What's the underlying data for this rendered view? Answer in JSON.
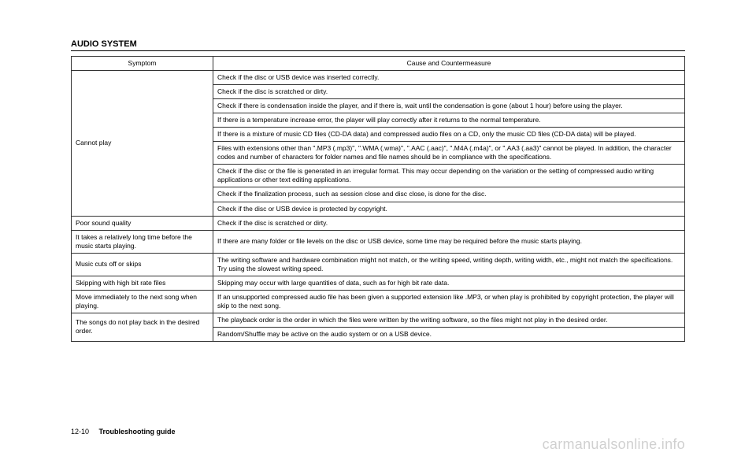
{
  "section_title": "AUDIO SYSTEM",
  "table": {
    "headers": [
      "Symptom",
      "Cause and Countermeasure"
    ],
    "groups": [
      {
        "symptom": "Cannot play",
        "causes": [
          "Check if the disc or USB device was inserted correctly.",
          "Check if the disc is scratched or dirty.",
          "Check if there is condensation inside the player, and if there is, wait until the condensation is gone (about 1 hour) before using the player.",
          "If there is a temperature increase error, the player will play correctly after it returns to the normal temperature.",
          "If there is a mixture of music CD files (CD-DA data) and compressed audio files on a CD, only the music CD files (CD-DA data) will be played.",
          "Files with extensions other than \".MP3 (.mp3)\", \".WMA (.wma)\", \".AAC (.aac)\", \".M4A (.m4a)\", or \".AA3 (.aa3)\" cannot be played. In addition, the character codes and number of characters for folder names and file names should be in compliance with the specifications.",
          "Check if the disc or the file is generated in an irregular format. This may occur depending on the variation or the setting of compressed audio writing applications or other text editing applications.",
          "Check if the finalization process, such as session close and disc close, is done for the disc.",
          "Check if the disc or USB device is protected by copyright."
        ]
      },
      {
        "symptom": "Poor sound quality",
        "causes": [
          "Check if the disc is scratched or dirty."
        ]
      },
      {
        "symptom": "It takes a relatively long time before the music starts playing.",
        "causes": [
          "If there are many folder or file levels on the disc or USB device, some time may be required before the music starts playing."
        ]
      },
      {
        "symptom": "Music cuts off or skips",
        "causes": [
          "The writing software and hardware combination might not match, or the writing speed, writing depth, writing width, etc., might not match the specifications. Try using the slowest writing speed."
        ]
      },
      {
        "symptom": "Skipping with high bit rate files",
        "causes": [
          "Skipping may occur with large quantities of data, such as for high bit rate data."
        ]
      },
      {
        "symptom": "Move immediately to the next song when playing.",
        "causes": [
          "If an unsupported compressed audio file has been given a supported extension like .MP3, or when play is prohibited by copyright protection, the player will skip to the next song."
        ]
      },
      {
        "symptom": "The songs do not play back in the desired order.",
        "causes": [
          "The playback order is the order in which the files were written by the writing software, so the files might not play in the desired order.",
          "Random/Shuffle may be active on the audio system or on a USB device."
        ]
      }
    ]
  },
  "footer": {
    "page_num": "12-10",
    "title": "Troubleshooting guide"
  },
  "watermark": "carmanualsonline.info"
}
